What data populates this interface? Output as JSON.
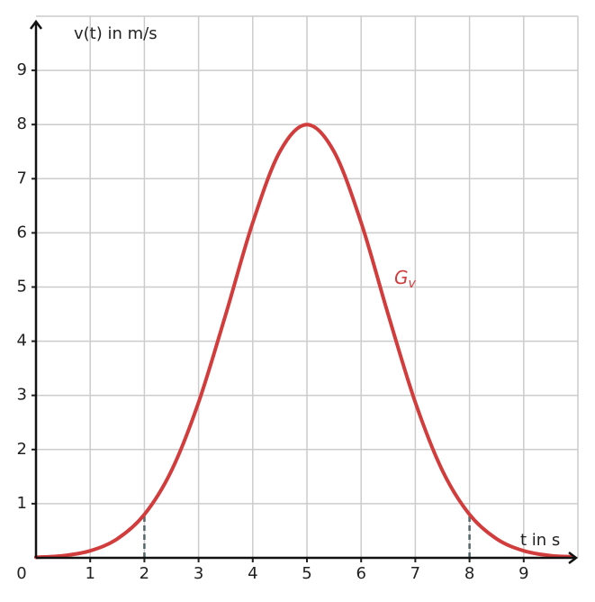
{
  "chart_data": {
    "type": "line",
    "x_label": "t in s",
    "y_label": "v(t) in m/s",
    "x": [
      0,
      0.5,
      1,
      1.5,
      2,
      2.5,
      3,
      3.5,
      4,
      4.5,
      5,
      5.5,
      6,
      6.5,
      7,
      7.5,
      8,
      8.5,
      9,
      9.5,
      9.9
    ],
    "series": [
      {
        "name": "G",
        "subscript": "v",
        "color": "#d13c3c",
        "values": [
          0.01,
          0.04,
          0.13,
          0.35,
          0.8,
          1.61,
          2.87,
          4.49,
          6.19,
          7.5,
          8,
          7.5,
          6.19,
          4.49,
          2.87,
          1.61,
          0.8,
          0.35,
          0.13,
          0.04,
          0.02
        ]
      }
    ],
    "reference_lines": [
      {
        "x": 2,
        "y": 0.8
      },
      {
        "x": 8,
        "y": 0.8
      }
    ],
    "xlim": [
      0,
      10
    ],
    "ylim": [
      0,
      10
    ],
    "xticks": [
      0,
      1,
      2,
      3,
      4,
      5,
      6,
      7,
      8,
      9
    ],
    "yticks": [
      1,
      2,
      3,
      4,
      5,
      6,
      7,
      8,
      9
    ],
    "grid": true
  }
}
